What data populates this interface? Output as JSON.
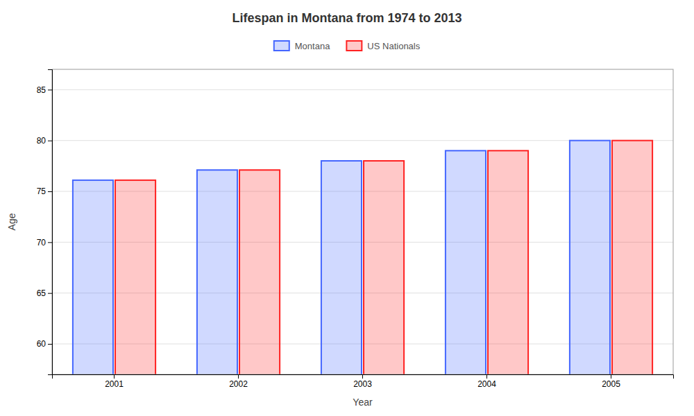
{
  "chart_data": {
    "type": "bar",
    "title": "Lifespan in Montana from 1974 to 2013",
    "xlabel": "Year",
    "ylabel": "Age",
    "categories": [
      "2001",
      "2002",
      "2003",
      "2004",
      "2005"
    ],
    "series": [
      {
        "name": "Montana",
        "color": "#4466ff",
        "values": [
          76.1,
          77.1,
          78.0,
          79.0,
          80.0
        ]
      },
      {
        "name": "US Nationals",
        "color": "#ff2222",
        "values": [
          76.1,
          77.1,
          78.0,
          79.0,
          80.0
        ]
      }
    ],
    "ylim": [
      57,
      87
    ],
    "yticks": [
      60,
      65,
      70,
      75,
      80,
      85
    ],
    "grid": true,
    "legend": "top"
  }
}
